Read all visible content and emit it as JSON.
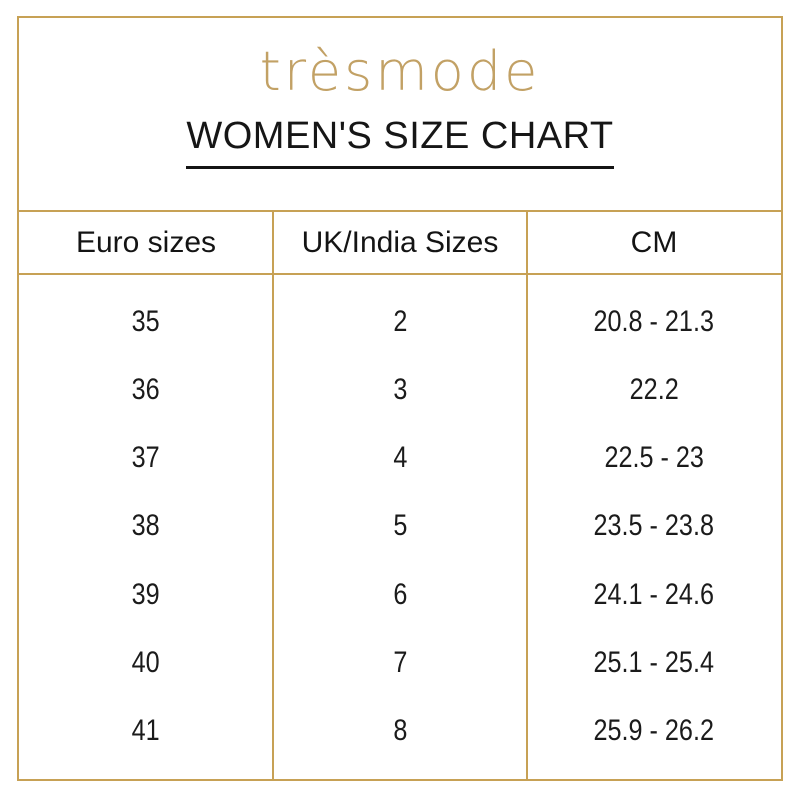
{
  "brand": {
    "logo_text": "trèsmode"
  },
  "chart_data": {
    "type": "table",
    "title": "WOMEN'S SIZE CHART",
    "columns": [
      "Euro sizes",
      "UK/India Sizes",
      "CM"
    ],
    "rows": [
      [
        "35",
        "2",
        "20.8 - 21.3"
      ],
      [
        "36",
        "3",
        "22.2"
      ],
      [
        "37",
        "4",
        "22.5 - 23"
      ],
      [
        "38",
        "5",
        "23.5 - 23.8"
      ],
      [
        "39",
        "6",
        "24.1 - 24.6"
      ],
      [
        "40",
        "7",
        "25.1 - 25.4"
      ],
      [
        "41",
        "8",
        "25.9 - 26.2"
      ]
    ],
    "layout_hints": {
      "grid": "gold vertical column rules, gold header row rules, no horizontal rules between body rows",
      "alignment": "all cells centered"
    }
  },
  "colors": {
    "border_gold": "#C7A155",
    "logo_gold": "#C2A165",
    "text_black": "#1B1B1B",
    "background": "#FFFFFF"
  }
}
